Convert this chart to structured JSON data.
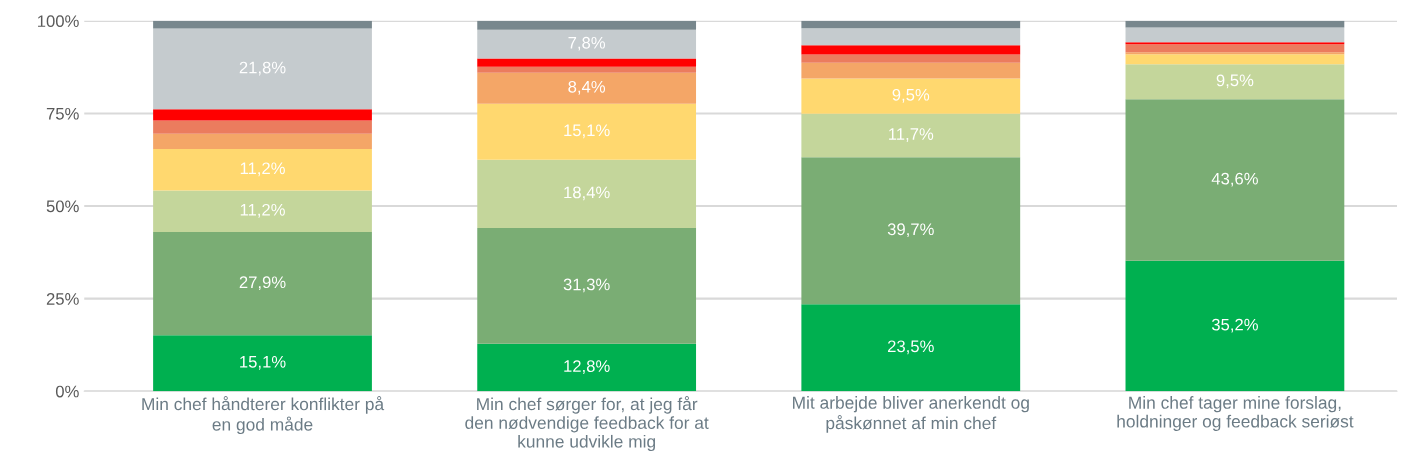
{
  "chart_data": {
    "type": "bar",
    "stacked": true,
    "categories": [
      "Min chef håndterer konflikter på\nen god måde",
      "Min chef sørger for, at jeg får\nden nødvendige feedback for at\nkunne udvikle mig",
      "Mit arbejde bliver anerkendt og\npåskønnet af min chef",
      "Min chef tager mine forslag,\nholdninger og feedback seriøst"
    ],
    "series": [
      {
        "color": "#00b050",
        "values": [
          15.1,
          12.8,
          23.5,
          35.2
        ],
        "value_labels": [
          "15,1%",
          "12,8%",
          "23,5%",
          "35,2%"
        ]
      },
      {
        "color": "#7aad74",
        "values": [
          27.9,
          31.3,
          39.7,
          43.6
        ],
        "value_labels": [
          "27,9%",
          "31,3%",
          "39,7%",
          "43,6%"
        ]
      },
      {
        "color": "#c4d69b",
        "values": [
          11.2,
          18.4,
          11.7,
          9.5
        ],
        "value_labels": [
          "11,2%",
          "18,4%",
          "11,7%",
          "9,5%"
        ]
      },
      {
        "color": "#ffd86f",
        "values": [
          11.2,
          15.1,
          9.5,
          2.7
        ],
        "value_labels": [
          "11,2%",
          "15,1%",
          "9,5%",
          null
        ]
      },
      {
        "color": "#f4a667",
        "values": [
          4.1,
          8.4,
          4.3,
          0.5
        ],
        "value_labels": [
          null,
          "8,4%",
          null,
          null
        ]
      },
      {
        "color": "#eb7c5e",
        "values": [
          3.6,
          1.6,
          2.2,
          2.2
        ]
      },
      {
        "color": "#ff0000",
        "values": [
          3.0,
          2.2,
          2.5,
          0.5
        ]
      },
      {
        "color": "#c5cbce",
        "values": [
          21.8,
          7.8,
          4.6,
          4.0
        ],
        "value_labels": [
          "21,8%",
          "7,8%",
          null,
          null
        ]
      },
      {
        "color": "#78878d",
        "values": [
          2.1,
          2.4,
          2.0,
          1.8
        ]
      }
    ],
    "ylim": [
      0,
      100
    ],
    "yticks": [
      {
        "value": 0,
        "label": "0%"
      },
      {
        "value": 25,
        "label": "25%"
      },
      {
        "value": 50,
        "label": "50%"
      },
      {
        "value": 75,
        "label": "75%"
      },
      {
        "value": 100,
        "label": "100%"
      }
    ],
    "grid": "y",
    "legend": false
  }
}
